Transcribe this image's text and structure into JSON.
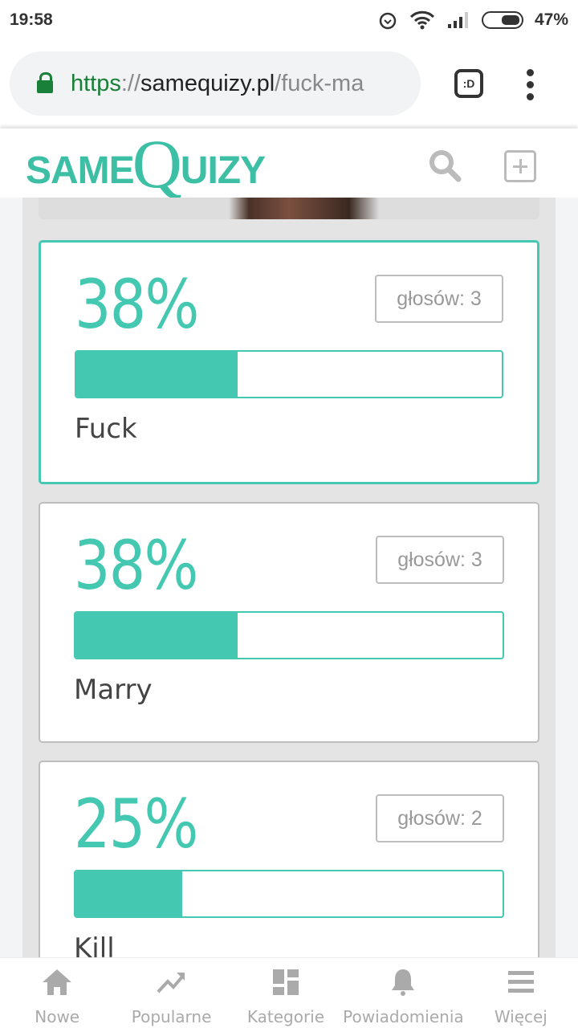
{
  "status_bar": {
    "time": "19:58",
    "battery": "47%"
  },
  "browser": {
    "url_scheme": "https",
    "url_sep": "://",
    "url_host": "samequizy.pl",
    "url_path": "/fuck-ma",
    "tab_label": ":D"
  },
  "header": {
    "logo_same": "SAME",
    "logo_q": "Q",
    "logo_uizy": "UIZY"
  },
  "accent": "#44c8b1",
  "results": [
    {
      "percent": "38%",
      "value": 38,
      "votes": "głosów: 3",
      "label": "Fuck",
      "selected": true
    },
    {
      "percent": "38%",
      "value": 38,
      "votes": "głosów: 3",
      "label": "Marry",
      "selected": false
    },
    {
      "percent": "25%",
      "value": 25,
      "votes": "głosów: 2",
      "label": "Kill",
      "selected": false
    }
  ],
  "nav": [
    {
      "label": "Nowe",
      "icon": "home-icon"
    },
    {
      "label": "Popularne",
      "icon": "trending-icon"
    },
    {
      "label": "Kategorie",
      "icon": "grid-icon"
    },
    {
      "label": "Powiadomienia",
      "icon": "bell-icon"
    },
    {
      "label": "Więcej",
      "icon": "menu-icon"
    }
  ]
}
